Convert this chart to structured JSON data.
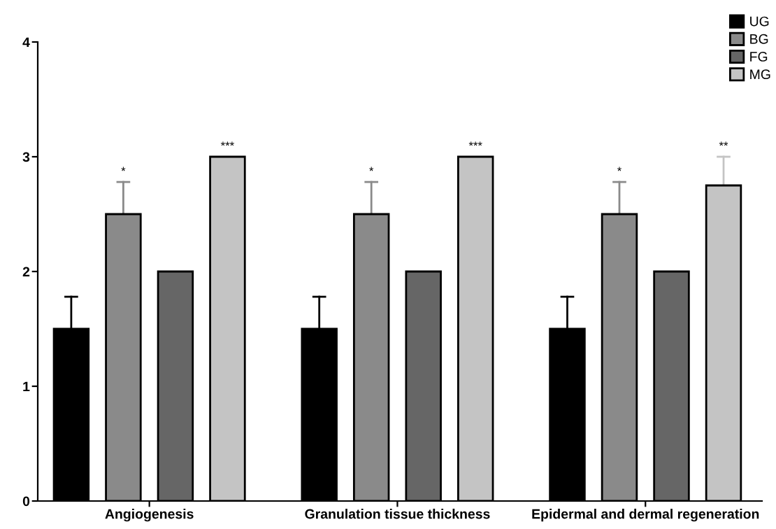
{
  "chart_data": {
    "type": "bar",
    "categories": [
      "Angiogenesis",
      "Granulation tissue thickness",
      "Epidermal and dermal regeneration"
    ],
    "series": [
      {
        "name": "UG",
        "color": "#000000",
        "values": [
          1.5,
          1.5,
          1.5
        ],
        "errors": [
          [
            1.5,
            1.78
          ],
          [
            1.5,
            1.78
          ],
          [
            1.5,
            1.78
          ]
        ]
      },
      {
        "name": "BG",
        "color": "#8a8a8a",
        "values": [
          2.5,
          2.5,
          2.5
        ],
        "errors": [
          [
            2.5,
            2.78
          ],
          [
            2.5,
            2.78
          ],
          [
            2.5,
            2.78
          ]
        ]
      },
      {
        "name": "FG",
        "color": "#666666",
        "values": [
          2,
          2,
          2
        ]
      },
      {
        "name": "MG",
        "color": "#c4c4c4",
        "values": [
          3,
          3,
          2.75
        ],
        "errors": [
          null,
          null,
          [
            2.75,
            3.0
          ]
        ]
      }
    ],
    "annotations": [
      "*",
      "***",
      "*",
      "***",
      "*",
      "**"
    ],
    "ylim": [
      0,
      4
    ],
    "yticks": [
      0,
      1,
      2,
      3,
      4
    ],
    "grid": false,
    "legend": "top right"
  }
}
